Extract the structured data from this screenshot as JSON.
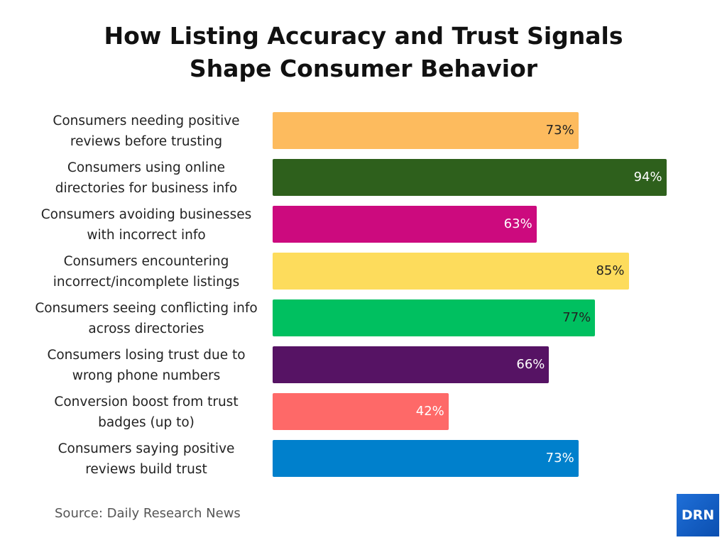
{
  "chart_data": {
    "type": "bar",
    "orientation": "horizontal",
    "title_lines": [
      "How Listing Accuracy and Trust Signals",
      "Shape Consumer Behavior"
    ],
    "categories": [
      [
        "Consumers needing positive",
        "reviews before trusting"
      ],
      [
        "Consumers using online",
        "directories for business info"
      ],
      [
        "Consumers avoiding businesses",
        "with incorrect info"
      ],
      [
        "Consumers encountering",
        "incorrect/incomplete listings"
      ],
      [
        "Consumers seeing conflicting info",
        "across directories"
      ],
      [
        "Consumers losing trust due to",
        "wrong phone numbers"
      ],
      [
        "Conversion boost from trust",
        "badges (up to)"
      ],
      [
        "Consumers saying positive",
        "reviews build trust"
      ]
    ],
    "values": [
      73,
      94,
      63,
      85,
      77,
      66,
      42,
      73
    ],
    "value_labels": [
      "73%",
      "94%",
      "63%",
      "85%",
      "77%",
      "66%",
      "42%",
      "73%"
    ],
    "colors": [
      "#fdbb5e",
      "#2e601c",
      "#cc0a7e",
      "#fddc5c",
      "#00c060",
      "#561364",
      "#fe6968",
      "#0080cc"
    ],
    "label_colors": [
      "#222222",
      "#ffffff",
      "#ffffff",
      "#222222",
      "#222222",
      "#ffffff",
      "#ffffff",
      "#ffffff"
    ],
    "xlim": [
      0,
      100
    ],
    "grid": false,
    "legend": "none"
  },
  "source": "Source: Daily Research News",
  "logo": "DRN"
}
